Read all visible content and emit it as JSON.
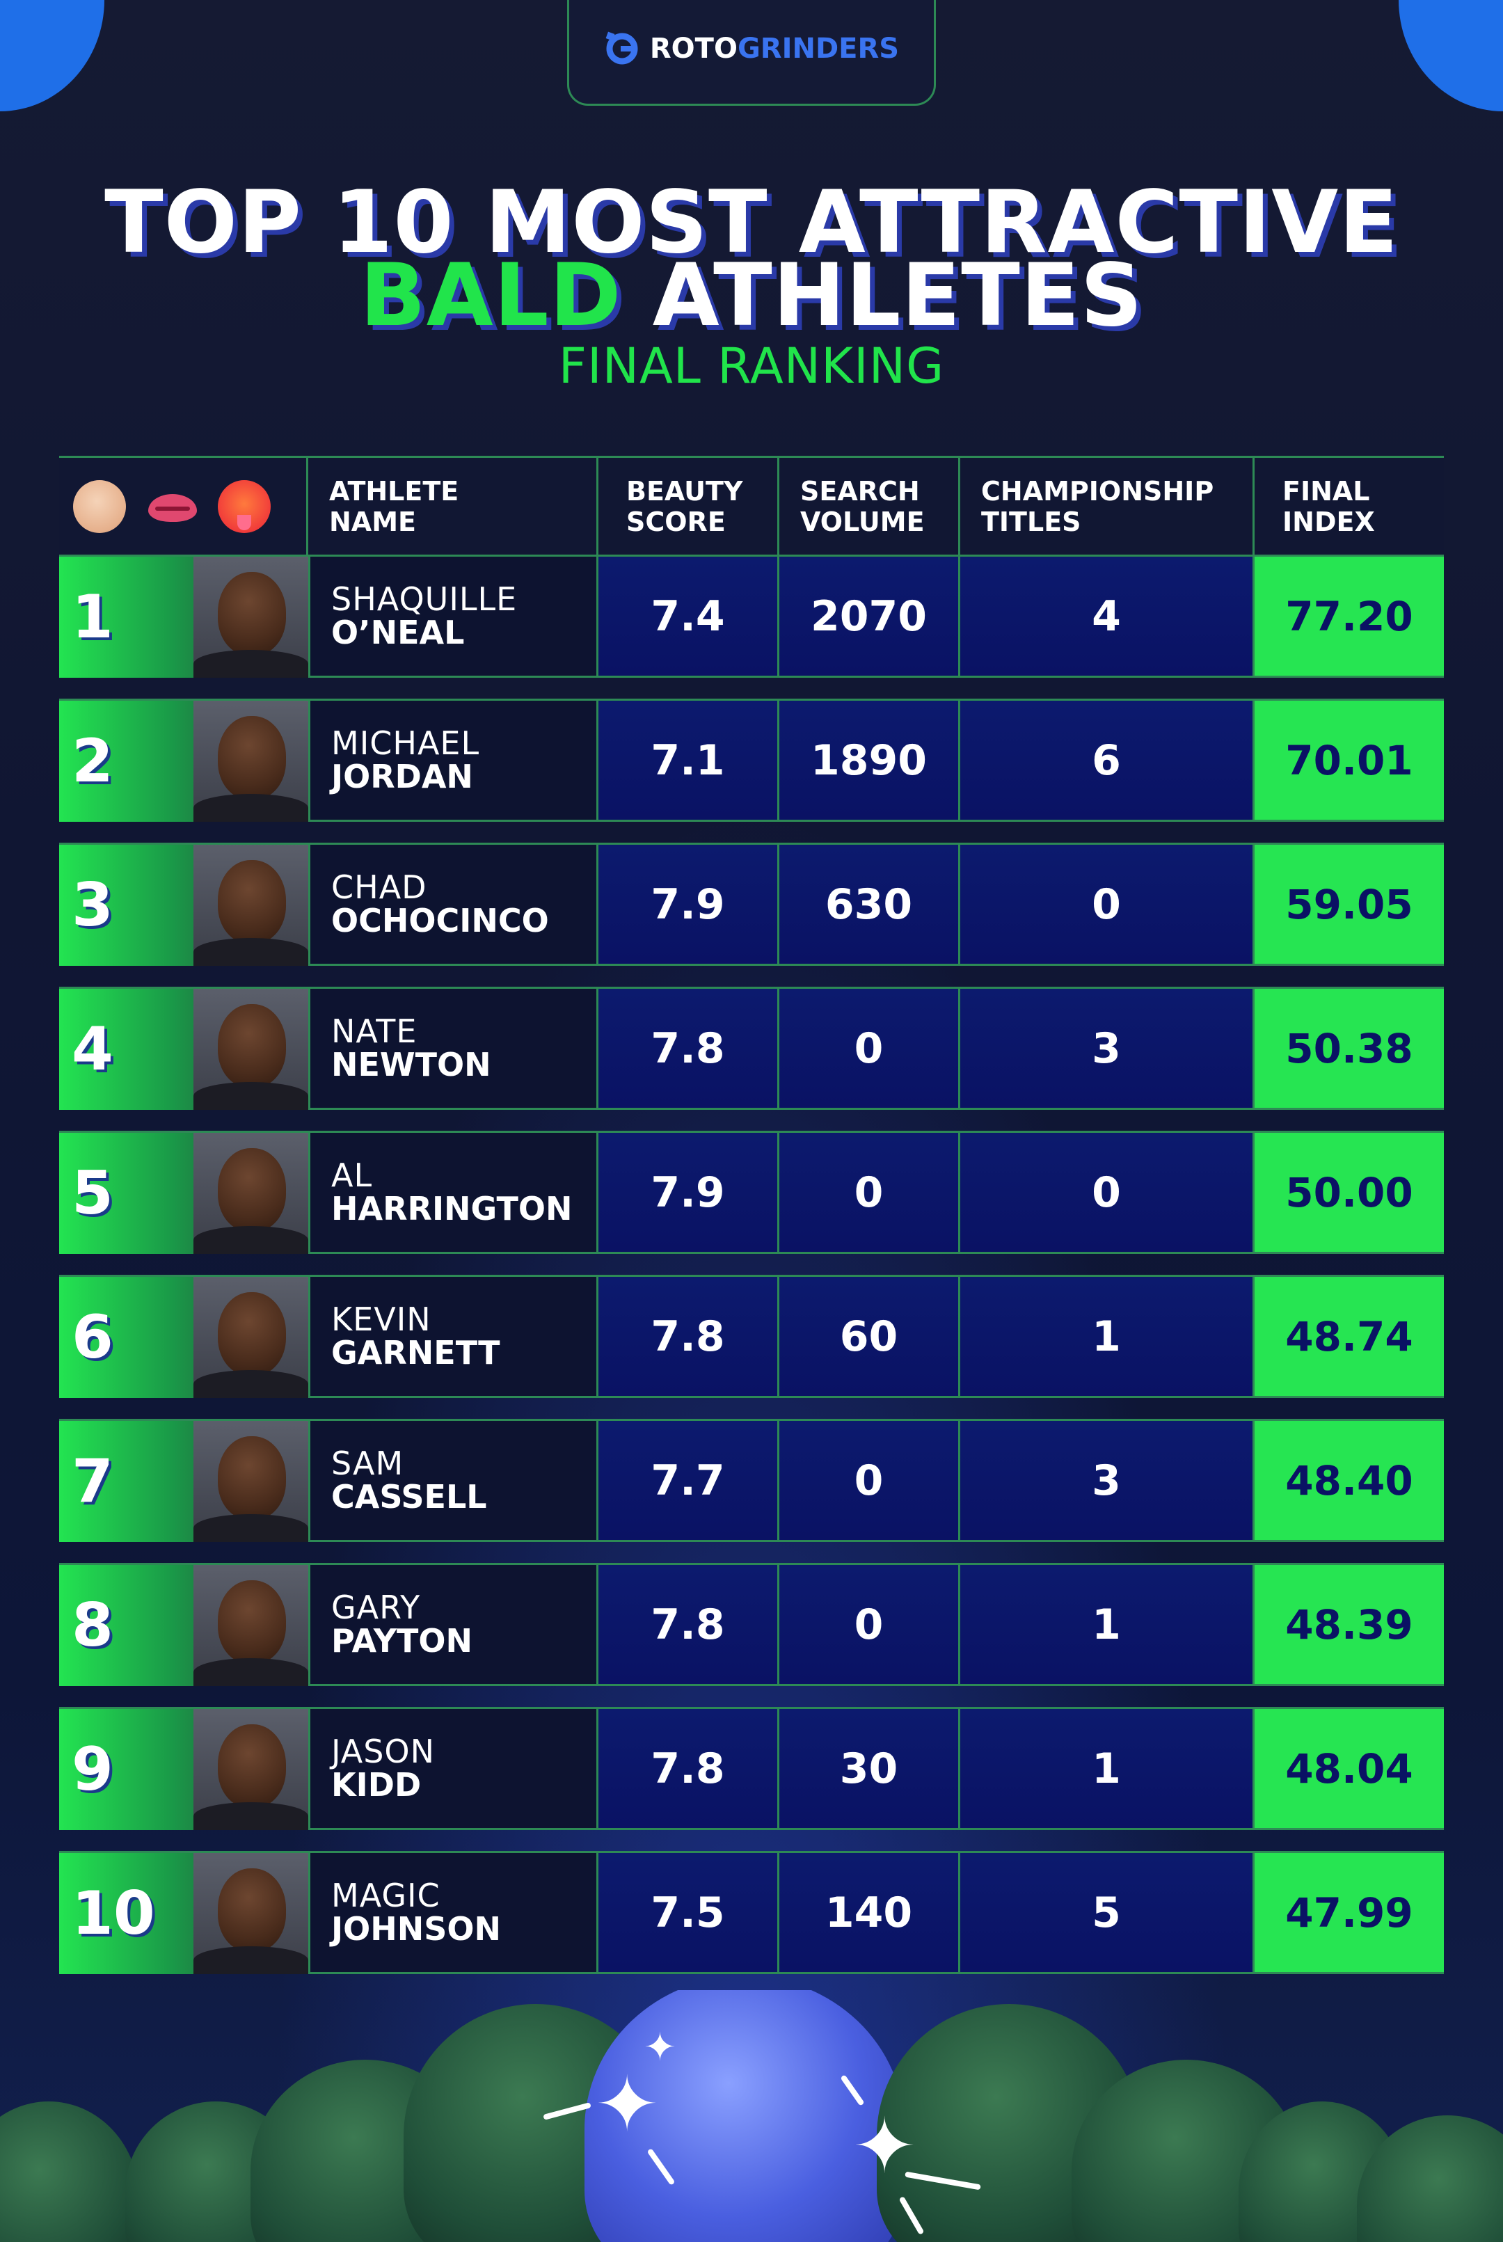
{
  "brand": {
    "roto": "ROTO",
    "grinders": "GRINDERS",
    "icon": "gear-g-logo-icon"
  },
  "title": {
    "line1": "TOP 10 MOST ATTRACTIVE",
    "bald": "BALD",
    "line2_rest": " ATHLETES",
    "subtitle": "FINAL RANKING"
  },
  "colors": {
    "accent_green": "#21e44b",
    "navy": "#0a1264",
    "bg": "#0d1330",
    "brand_blue": "#3a74f0"
  },
  "header": {
    "emojis": [
      "bald-head-emoji-icon",
      "biting-lip-emoji-icon",
      "hot-face-emoji-icon"
    ],
    "athlete_name": [
      "ATHLETE",
      "NAME"
    ],
    "beauty_score": [
      "BEAUTY",
      "SCORE"
    ],
    "search_volume": [
      "SEARCH",
      "VOLUME"
    ],
    "championship_titles": [
      "CHAMPIONSHIP",
      "TITLES"
    ],
    "final_index": [
      "FINAL",
      "INDEX"
    ]
  },
  "rows": [
    {
      "rank": "1",
      "first": "SHAQUILLE",
      "last": "O’NEAL",
      "beauty": "7.4",
      "search": "2070",
      "titles": "4",
      "index": "77.20"
    },
    {
      "rank": "2",
      "first": "MICHAEL",
      "last": "JORDAN",
      "beauty": "7.1",
      "search": "1890",
      "titles": "6",
      "index": "70.01"
    },
    {
      "rank": "3",
      "first": "CHAD",
      "last": "OCHOCINCO",
      "beauty": "7.9",
      "search": "630",
      "titles": "0",
      "index": "59.05"
    },
    {
      "rank": "4",
      "first": "NATE",
      "last": "NEWTON",
      "beauty": "7.8",
      "search": "0",
      "titles": "3",
      "index": "50.38"
    },
    {
      "rank": "5",
      "first": "AL",
      "last": "HARRINGTON",
      "beauty": "7.9",
      "search": "0",
      "titles": "0",
      "index": "50.00"
    },
    {
      "rank": "6",
      "first": "KEVIN",
      "last": "GARNETT",
      "beauty": "7.8",
      "search": "60",
      "titles": "1",
      "index": "48.74"
    },
    {
      "rank": "7",
      "first": "SAM",
      "last": "CASSELL",
      "beauty": "7.7",
      "search": "0",
      "titles": "3",
      "index": "48.40"
    },
    {
      "rank": "8",
      "first": "GARY",
      "last": "PAYTON",
      "beauty": "7.8",
      "search": "0",
      "titles": "1",
      "index": "48.39"
    },
    {
      "rank": "9",
      "first": "JASON",
      "last": "KIDD",
      "beauty": "7.8",
      "search": "30",
      "titles": "1",
      "index": "48.04"
    },
    {
      "rank": "10",
      "first": "MAGIC",
      "last": "JOHNSON",
      "beauty": "7.5",
      "search": "140",
      "titles": "5",
      "index": "47.99"
    }
  ]
}
